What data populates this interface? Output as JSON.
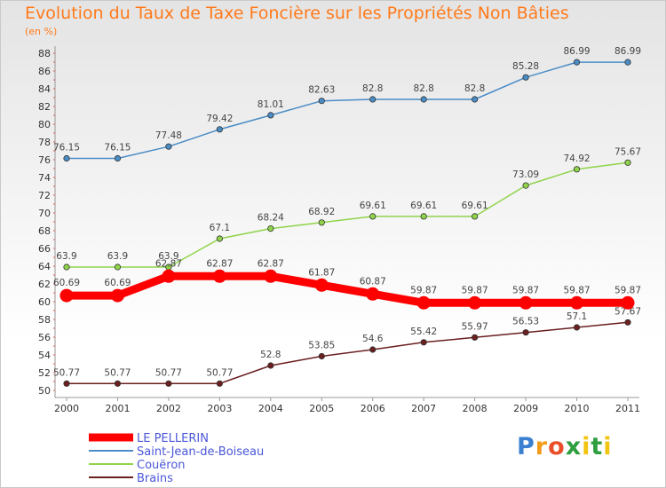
{
  "chart_data": {
    "type": "line",
    "title": "Evolution du Taux de Taxe Foncière sur les Propriétés Non Bâties",
    "subtitle": "(en %)",
    "x": [
      "2000",
      "2001",
      "2002",
      "2003",
      "2004",
      "2005",
      "2006",
      "2007",
      "2008",
      "2009",
      "2010",
      "2011"
    ],
    "ylim": [
      50,
      88
    ],
    "yticks": [
      50,
      52,
      54,
      56,
      58,
      60,
      62,
      64,
      66,
      68,
      70,
      72,
      74,
      76,
      78,
      80,
      82,
      84,
      86,
      88
    ],
    "grid": false,
    "legend_position": "bottom-left",
    "series": [
      {
        "name": "LE PELLERIN",
        "color": "#ff0000",
        "values": [
          60.69,
          60.69,
          62.87,
          62.87,
          62.87,
          61.87,
          60.87,
          59.87,
          59.87,
          59.87,
          59.87,
          59.87
        ],
        "labels": [
          "60.69",
          "60.69",
          "62.87",
          "62.87",
          "62.87",
          "61.87",
          "60.87",
          "59.87",
          "59.87",
          "59.87",
          "59.87",
          "59.87"
        ]
      },
      {
        "name": "Saint-Jean-de-Boiseau",
        "color": "#4a8cc6",
        "values": [
          76.15,
          76.15,
          77.48,
          79.42,
          81.01,
          82.63,
          82.8,
          82.8,
          82.8,
          85.28,
          86.99,
          86.99
        ],
        "labels": [
          "76.15",
          "76.15",
          "77.48",
          "79.42",
          "81.01",
          "82.63",
          "82.8",
          "82.8",
          "82.8",
          "85.28",
          "86.99",
          "86.99"
        ]
      },
      {
        "name": "Couëron",
        "color": "#8fd44a",
        "values": [
          63.9,
          63.9,
          63.9,
          67.1,
          68.24,
          68.92,
          69.61,
          69.61,
          69.61,
          73.09,
          74.92,
          75.67
        ],
        "labels": [
          "63.9",
          "63.9",
          "63.9",
          "67.1",
          "68.24",
          "68.92",
          "69.61",
          "69.61",
          "69.61",
          "73.09",
          "74.92",
          "75.67"
        ]
      },
      {
        "name": "Brains",
        "color": "#6b1f1f",
        "values": [
          50.77,
          50.77,
          50.77,
          50.77,
          52.8,
          53.85,
          54.6,
          55.42,
          55.97,
          56.53,
          57.1,
          57.67
        ],
        "labels": [
          "50.77",
          "50.77",
          "50.77",
          "50.77",
          "52.8",
          "53.85",
          "54.6",
          "55.42",
          "55.97",
          "56.53",
          "57.1",
          "57.67"
        ]
      }
    ]
  },
  "logo": {
    "letters": [
      "P",
      "r",
      "o",
      "x",
      "i",
      "t",
      "i"
    ],
    "colors": [
      "#3a7fd0",
      "#f39c1a",
      "#e84f2a",
      "#2e9e3e",
      "#f1c40f",
      "#2e9e3e",
      "#f1c40f"
    ]
  }
}
